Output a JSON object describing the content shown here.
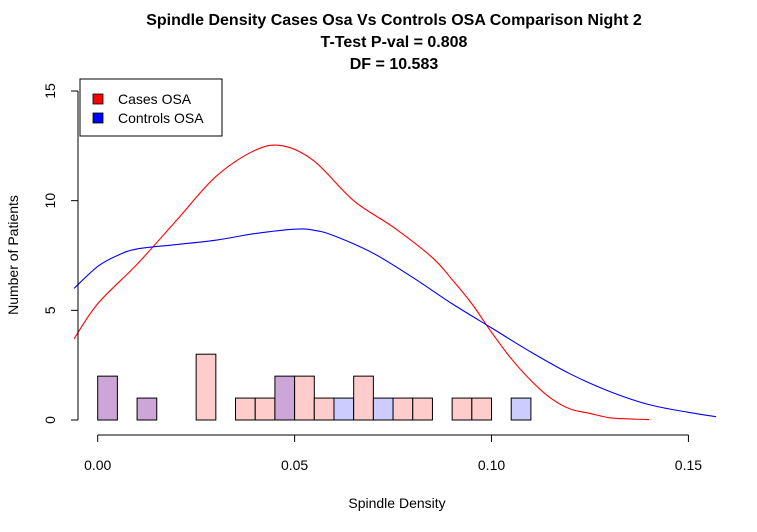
{
  "chart_data": {
    "type": "histogram",
    "title": [
      "Spindle Density Cases Osa Vs Controls OSA Comparison Night 2",
      "T-Test P-val = 0.808",
      "DF = 10.583"
    ],
    "xlabel": "Spindle Density",
    "ylabel": "Number of Patients",
    "xlim": [
      -0.005,
      0.157
    ],
    "ylim": [
      0,
      15
    ],
    "x_ticks": [
      0.0,
      0.05,
      0.1,
      0.15
    ],
    "x_tick_labels": [
      "0.00",
      "0.05",
      "0.10",
      "0.15"
    ],
    "y_ticks": [
      0,
      5,
      10,
      15
    ],
    "y_tick_labels": [
      "0",
      "5",
      "10",
      "15"
    ],
    "bin_width": 0.005,
    "legend": {
      "placement": "top-left",
      "entries": [
        {
          "label": "Cases OSA",
          "color": "#ff0000"
        },
        {
          "label": "Controls OSA",
          "color": "#0000ff"
        }
      ]
    },
    "bars": [
      {
        "x0": 0.0,
        "x1": 0.005,
        "count": 2,
        "group": "overlap"
      },
      {
        "x0": 0.01,
        "x1": 0.015,
        "count": 1,
        "group": "overlap"
      },
      {
        "x0": 0.025,
        "x1": 0.03,
        "count": 3,
        "group": "cases"
      },
      {
        "x0": 0.035,
        "x1": 0.04,
        "count": 1,
        "group": "cases"
      },
      {
        "x0": 0.04,
        "x1": 0.045,
        "count": 1,
        "group": "cases"
      },
      {
        "x0": 0.045,
        "x1": 0.05,
        "count": 2,
        "group": "overlap"
      },
      {
        "x0": 0.05,
        "x1": 0.055,
        "count": 2,
        "group": "cases"
      },
      {
        "x0": 0.055,
        "x1": 0.06,
        "count": 1,
        "group": "cases"
      },
      {
        "x0": 0.06,
        "x1": 0.065,
        "count": 1,
        "group": "controls"
      },
      {
        "x0": 0.065,
        "x1": 0.07,
        "count": 2,
        "group": "cases"
      },
      {
        "x0": 0.07,
        "x1": 0.075,
        "count": 1,
        "group": "controls"
      },
      {
        "x0": 0.075,
        "x1": 0.08,
        "count": 1,
        "group": "cases"
      },
      {
        "x0": 0.08,
        "x1": 0.085,
        "count": 1,
        "group": "cases"
      },
      {
        "x0": 0.09,
        "x1": 0.095,
        "count": 1,
        "group": "cases"
      },
      {
        "x0": 0.095,
        "x1": 0.1,
        "count": 1,
        "group": "cases"
      },
      {
        "x0": 0.105,
        "x1": 0.11,
        "count": 1,
        "group": "controls"
      }
    ],
    "group_fill_colors": {
      "cases": "#ffcccc",
      "controls": "#ccccff",
      "overlap": "#cca6d6"
    },
    "series": [
      {
        "name": "Cases OSA",
        "color": "#ff0000",
        "x": [
          -0.006,
          0.0,
          0.01,
          0.02,
          0.03,
          0.04,
          0.047,
          0.055,
          0.065,
          0.075,
          0.085,
          0.09,
          0.095,
          0.1,
          0.105,
          0.11,
          0.115,
          0.12,
          0.125,
          0.13,
          0.135,
          0.14
        ],
        "y": [
          3.7,
          5.3,
          7.1,
          9.1,
          11.1,
          12.3,
          12.5,
          11.8,
          10.0,
          8.8,
          7.4,
          6.4,
          5.3,
          4.0,
          2.8,
          1.8,
          1.0,
          0.5,
          0.3,
          0.1,
          0.05,
          0.02
        ]
      },
      {
        "name": "Controls OSA",
        "color": "#0000ff",
        "x": [
          -0.006,
          0.0,
          0.005,
          0.01,
          0.02,
          0.03,
          0.04,
          0.05,
          0.055,
          0.06,
          0.07,
          0.08,
          0.09,
          0.1,
          0.11,
          0.12,
          0.13,
          0.14,
          0.15,
          0.157
        ],
        "y": [
          6.0,
          7.0,
          7.5,
          7.8,
          8.0,
          8.2,
          8.5,
          8.7,
          8.65,
          8.4,
          7.6,
          6.5,
          5.3,
          4.2,
          3.1,
          2.1,
          1.3,
          0.7,
          0.35,
          0.15
        ]
      }
    ]
  }
}
